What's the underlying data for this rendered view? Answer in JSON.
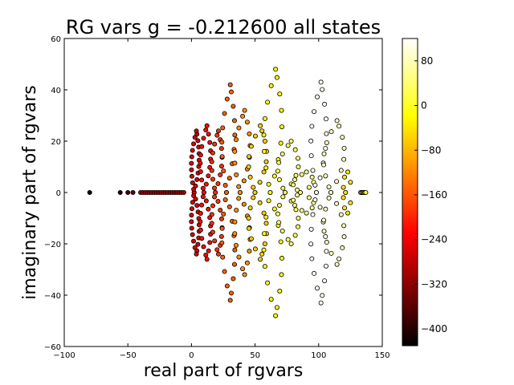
{
  "chart_data": {
    "type": "scatter",
    "title": "RG vars g = -0.212600 all states",
    "xlabel": "real part of rgvars",
    "ylabel": "imaginary part of rgvars",
    "xlim": [
      -100,
      150
    ],
    "ylim": [
      -60,
      60
    ],
    "xticks": [
      -100,
      -50,
      0,
      50,
      100,
      150
    ],
    "xtick_labels": [
      "−100",
      "−50",
      "0",
      "50",
      "100",
      "150"
    ],
    "yticks": [
      -60,
      -40,
      -20,
      0,
      20,
      40,
      60
    ],
    "ytick_labels": [
      "−60",
      "−40",
      "−20",
      "0",
      "20",
      "40",
      "60"
    ],
    "grid": false,
    "marker": "circle",
    "colormap": "hot",
    "colorbar": {
      "range": [
        -430,
        120
      ],
      "ticks": [
        120,
        80,
        0,
        -80,
        -160,
        -240,
        -320,
        -400
      ],
      "tick_labels": [
        "",
        "80",
        "0",
        "−80",
        "−160",
        "−240",
        "−320",
        "−400"
      ]
    },
    "point_families": [
      {
        "center": [
          -80,
          0
        ],
        "half_width": 0,
        "height": 0,
        "color_value": -420,
        "count": 1
      },
      {
        "center": [
          -56,
          0
        ],
        "half_width": 0,
        "height": 0,
        "color_value": -405,
        "count": 1
      },
      {
        "center": [
          -50,
          0
        ],
        "half_width": 0,
        "height": 0,
        "color_value": -380,
        "count": 1
      },
      {
        "center": [
          -46,
          0
        ],
        "half_width": 0,
        "height": 0,
        "color_value": -360,
        "count": 1
      },
      {
        "center": [
          -23,
          0
        ],
        "half_width": 17,
        "height": 0,
        "color_value": -300,
        "count": 20
      },
      {
        "center": [
          3,
          0
        ],
        "half_width": 3,
        "height": 24,
        "color_value": -260,
        "count": 40
      },
      {
        "center": [
          11,
          0
        ],
        "half_width": 4,
        "height": 26,
        "color_value": -220,
        "count": 34
      },
      {
        "center": [
          20,
          0
        ],
        "half_width": 4,
        "height": 24,
        "color_value": -190,
        "count": 30
      },
      {
        "center": [
          29,
          0
        ],
        "half_width": 5,
        "height": 42,
        "color_value": -150,
        "count": 32
      },
      {
        "center": [
          40,
          0
        ],
        "half_width": 6,
        "height": 32,
        "color_value": -110,
        "count": 30
      },
      {
        "center": [
          52,
          0
        ],
        "half_width": 7,
        "height": 26,
        "color_value": -60,
        "count": 28
      },
      {
        "center": [
          64,
          0
        ],
        "half_width": 7,
        "height": 48,
        "color_value": -20,
        "count": 32
      },
      {
        "center": [
          76,
          0
        ],
        "half_width": 8,
        "height": 20,
        "color_value": 30,
        "count": 26
      },
      {
        "center": [
          88,
          0
        ],
        "half_width": 8,
        "height": 8,
        "color_value": 50,
        "count": 18
      },
      {
        "center": [
          100,
          0
        ],
        "half_width": 6,
        "height": 43,
        "color_value": 110,
        "count": 32
      },
      {
        "center": [
          112,
          0
        ],
        "half_width": 8,
        "height": 28,
        "color_value": 80,
        "count": 28
      },
      {
        "center": [
          122,
          0
        ],
        "half_width": 3,
        "height": 8,
        "color_value": -40,
        "count": 10
      },
      {
        "center": [
          135,
          0
        ],
        "half_width": 2,
        "height": 0,
        "color_value": 0,
        "count": 6
      }
    ]
  }
}
